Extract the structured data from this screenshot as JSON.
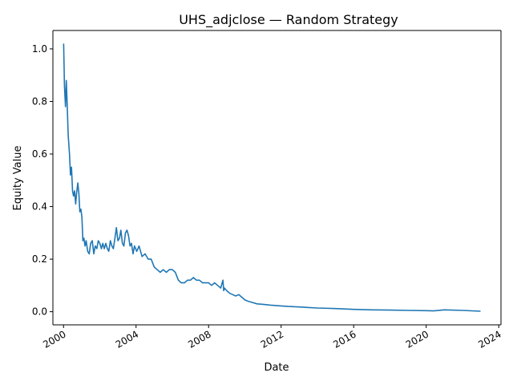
{
  "chart_data": {
    "type": "line",
    "title": "UHS_adjclose — Random Strategy",
    "xlabel": "Date",
    "ylabel": "Equity Value",
    "xlim": [
      "1999-06-01",
      "2024-02-15"
    ],
    "ylim": [
      -0.05,
      1.07
    ],
    "x_ticks": [
      "2000",
      "2004",
      "2008",
      "2012",
      "2016",
      "2020",
      "2024"
    ],
    "y_ticks": [
      "0.0",
      "0.2",
      "0.4",
      "0.6",
      "0.8",
      "1.0"
    ],
    "grid": false,
    "line_color": "#1f77b4",
    "series": [
      {
        "x": [
          "2000-01-03",
          "2000-01-20",
          "2000-02-10",
          "2000-02-25",
          "2000-03-15",
          "2000-04-05",
          "2000-05-01",
          "2000-05-20",
          "2000-06-10",
          "2000-07-01",
          "2000-07-20",
          "2000-08-10",
          "2000-09-01",
          "2000-09-20",
          "2000-10-15",
          "2000-11-05",
          "2000-11-25",
          "2000-12-15",
          "2001-01-05",
          "2001-01-25",
          "2001-02-15",
          "2001-03-10",
          "2001-04-01",
          "2001-05-01",
          "2001-06-01",
          "2001-07-01",
          "2001-08-01",
          "2001-09-01",
          "2001-10-01",
          "2001-11-01",
          "2001-12-01",
          "2002-01-01",
          "2002-02-01",
          "2002-03-01",
          "2002-04-01",
          "2002-05-01",
          "2002-06-01",
          "2002-07-01",
          "2002-08-01",
          "2002-09-01",
          "2002-10-01",
          "2002-11-01",
          "2002-12-01",
          "2003-01-01",
          "2003-02-01",
          "2003-03-01",
          "2003-04-01",
          "2003-05-01",
          "2003-06-01",
          "2003-07-01",
          "2003-08-01",
          "2003-09-01",
          "2003-10-01",
          "2003-11-01",
          "2003-12-01",
          "2004-01-15",
          "2004-03-01",
          "2004-05-01",
          "2004-07-01",
          "2004-09-01",
          "2004-11-01",
          "2005-01-01",
          "2005-03-01",
          "2005-05-01",
          "2005-07-01",
          "2005-09-01",
          "2005-11-01",
          "2006-01-01",
          "2006-03-01",
          "2006-05-01",
          "2006-07-01",
          "2006-09-01",
          "2006-11-01",
          "2007-01-01",
          "2007-03-01",
          "2007-05-01",
          "2007-07-01",
          "2007-09-01",
          "2007-11-01",
          "2008-01-01",
          "2008-03-01",
          "2008-05-01",
          "2008-07-01",
          "2008-09-01",
          "2008-10-15",
          "2008-11-01",
          "2008-11-15",
          "2009-01-01",
          "2009-03-01",
          "2009-05-01",
          "2009-07-01",
          "2009-09-01",
          "2009-11-01",
          "2010-01-01",
          "2010-03-01",
          "2010-06-01",
          "2010-09-01",
          "2011-01-01",
          "2011-06-01",
          "2012-01-01",
          "2012-06-01",
          "2013-01-01",
          "2014-01-01",
          "2015-01-01",
          "2016-01-01",
          "2017-01-01",
          "2018-01-01",
          "2019-01-01",
          "2020-01-01",
          "2020-06-01",
          "2021-01-01",
          "2022-01-01",
          "2022-12-31"
        ],
        "values": [
          1.02,
          0.86,
          0.78,
          0.88,
          0.79,
          0.67,
          0.6,
          0.52,
          0.55,
          0.46,
          0.44,
          0.46,
          0.41,
          0.45,
          0.49,
          0.45,
          0.38,
          0.39,
          0.36,
          0.27,
          0.28,
          0.25,
          0.27,
          0.23,
          0.22,
          0.26,
          0.27,
          0.22,
          0.25,
          0.24,
          0.27,
          0.26,
          0.24,
          0.26,
          0.24,
          0.26,
          0.24,
          0.23,
          0.27,
          0.25,
          0.24,
          0.28,
          0.32,
          0.27,
          0.28,
          0.31,
          0.26,
          0.25,
          0.3,
          0.31,
          0.29,
          0.25,
          0.26,
          0.22,
          0.25,
          0.23,
          0.25,
          0.21,
          0.22,
          0.2,
          0.2,
          0.17,
          0.16,
          0.15,
          0.16,
          0.15,
          0.16,
          0.16,
          0.15,
          0.12,
          0.11,
          0.11,
          0.12,
          0.12,
          0.13,
          0.12,
          0.12,
          0.11,
          0.11,
          0.11,
          0.1,
          0.11,
          0.1,
          0.09,
          0.12,
          0.08,
          0.09,
          0.08,
          0.07,
          0.065,
          0.06,
          0.065,
          0.055,
          0.045,
          0.04,
          0.035,
          0.03,
          0.028,
          0.025,
          0.022,
          0.02,
          0.018,
          0.014,
          0.012,
          0.009,
          0.007,
          0.006,
          0.005,
          0.004,
          0.003,
          0.007,
          0.005,
          0.002
        ]
      }
    ]
  }
}
